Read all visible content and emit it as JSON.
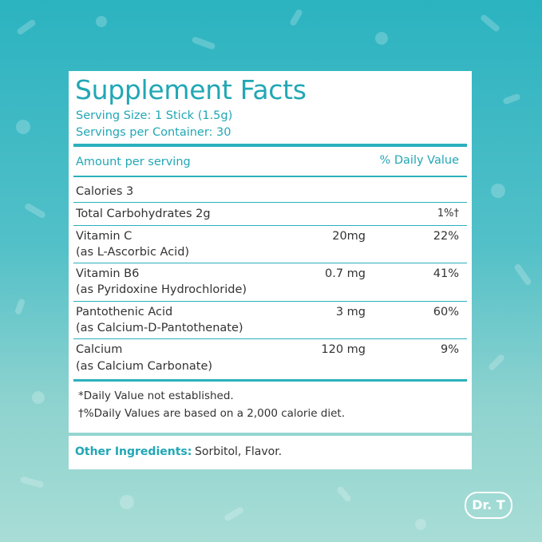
{
  "facts": {
    "title": "Supplement Facts",
    "serving_size": "Serving Size: 1 Stick (1.5g)",
    "servings_per_container": "Servings per Container: 30",
    "amount_header": "Amount per serving",
    "dv_header": "% Daily Value",
    "rows": [
      {
        "name": "Calories 3",
        "sub": "",
        "amount": "",
        "dv": ""
      },
      {
        "name": "Total Carbohydrates 2g",
        "sub": "",
        "amount": "",
        "dv": "1%†"
      },
      {
        "name": "Vitamin C",
        "sub": "(as L-Ascorbic Acid)",
        "amount": "20mg",
        "dv": "22%"
      },
      {
        "name": "Vitamin B6",
        "sub": "(as Pyridoxine Hydrochloride)",
        "amount": "0.7 mg",
        "dv": "41%"
      },
      {
        "name": "Pantothenic Acid",
        "sub": "(as Calcium-D-Pantothenate)",
        "amount": "3 mg",
        "dv": "60%"
      },
      {
        "name": "Calcium",
        "sub": "(as Calcium Carbonate)",
        "amount": "120 mg",
        "dv": "9%"
      }
    ],
    "footnote_1": "*Daily Value not established.",
    "footnote_2": "†%Daily Values are based on a 2,000 calorie diet."
  },
  "other": {
    "label": "Other Ingredients:",
    "value": "Sorbitol, Flavor."
  },
  "brand": {
    "logo_text": "Dr. T"
  },
  "colors": {
    "accent": "#21a7b5",
    "background_top": "#2bb3c0",
    "background_bottom": "#a8ddd6"
  }
}
